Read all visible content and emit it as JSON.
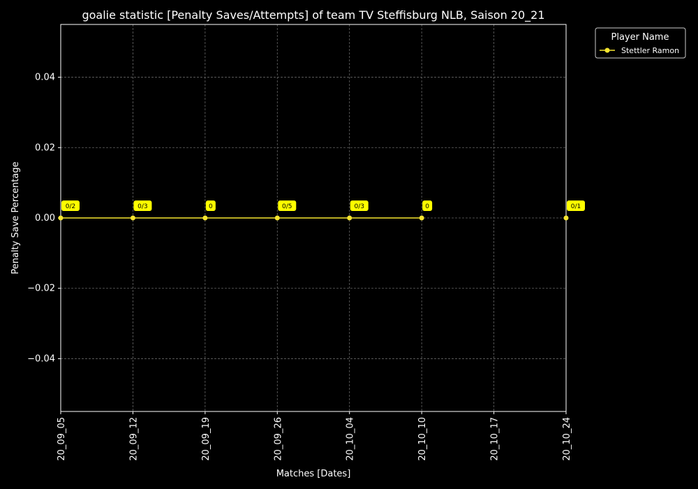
{
  "chart_data": {
    "type": "line",
    "title": "goalie statistic [Penalty Saves/Attempts] of team TV Steffisburg NLB, Saison 20_21",
    "xlabel": "Matches [Dates]",
    "ylabel": "Penalty Save Percentage",
    "categories": [
      "20_09_05",
      "20_09_12",
      "20_09_19",
      "20_09_26",
      "20_10_04",
      "20_10_10",
      "20_10_17",
      "20_10_24"
    ],
    "yticks": [
      -0.04,
      -0.02,
      0.0,
      0.02,
      0.04
    ],
    "ytick_labels": [
      "−0.04",
      "−0.02",
      "0.00",
      "0.02",
      "0.04"
    ],
    "ylim": [
      -0.055,
      0.055
    ],
    "grid": true,
    "legend": {
      "title": "Player Name",
      "position": "top-right outside"
    },
    "series": [
      {
        "name": "Stettler Ramon",
        "color": "#f5e52f",
        "points": [
          {
            "x": "20_09_05",
            "y": 0.0,
            "label": "0/2"
          },
          {
            "x": "20_09_12",
            "y": 0.0,
            "label": "0/3"
          },
          {
            "x": "20_09_19",
            "y": 0.0,
            "label": "0"
          },
          {
            "x": "20_09_26",
            "y": 0.0,
            "label": "0/5"
          },
          {
            "x": "20_10_04",
            "y": 0.0,
            "label": "0/3"
          },
          {
            "x": "20_10_10",
            "y": 0.0,
            "label": "0"
          },
          {
            "x": "20_10_24",
            "y": 0.0,
            "label": "0/1"
          }
        ]
      }
    ]
  },
  "colors": {
    "background": "#000000",
    "label_box": "#ffff00",
    "grid": "#666666",
    "axis": "#ffffff"
  }
}
